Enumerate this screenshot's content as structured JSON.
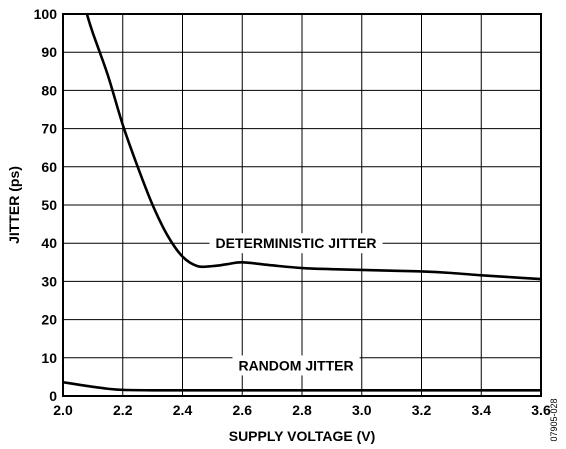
{
  "chart_data": {
    "type": "line",
    "xlabel": "SUPPLY VOLTAGE (V)",
    "ylabel": "JITTER (ps)",
    "xlim": [
      2.0,
      3.6
    ],
    "ylim": [
      0,
      100
    ],
    "x_ticks": [
      "2.0",
      "2.2",
      "2.4",
      "2.6",
      "2.8",
      "3.0",
      "3.2",
      "3.4",
      "3.6"
    ],
    "y_ticks": [
      "0",
      "10",
      "20",
      "30",
      "40",
      "50",
      "60",
      "70",
      "80",
      "90",
      "100"
    ],
    "grid": true,
    "series": [
      {
        "name": "DETERMINISTIC JITTER",
        "x": [
          2.08,
          2.1,
          2.15,
          2.2,
          2.25,
          2.3,
          2.35,
          2.4,
          2.45,
          2.5,
          2.55,
          2.6,
          2.7,
          2.8,
          2.9,
          3.0,
          3.1,
          3.2,
          3.3,
          3.4,
          3.5,
          3.6
        ],
        "y": [
          100,
          95,
          84,
          71,
          60,
          50,
          42,
          36.5,
          34,
          34,
          34.5,
          35,
          34.2,
          33.5,
          33.2,
          33,
          32.8,
          32.6,
          32.2,
          31.6,
          31.1,
          30.6
        ]
      },
      {
        "name": "RANDOM JITTER",
        "x": [
          2.0,
          2.05,
          2.1,
          2.15,
          2.2,
          2.3,
          2.6,
          3.0,
          3.6
        ],
        "y": [
          3.6,
          3.0,
          2.4,
          1.9,
          1.6,
          1.5,
          1.5,
          1.5,
          1.5
        ]
      }
    ],
    "annotations": [
      {
        "text": "DETERMINISTIC JITTER",
        "x": 2.78,
        "y": 40
      },
      {
        "text": "RANDOM JITTER",
        "x": 2.78,
        "y": 8
      }
    ],
    "figure_id": "07905-028"
  }
}
